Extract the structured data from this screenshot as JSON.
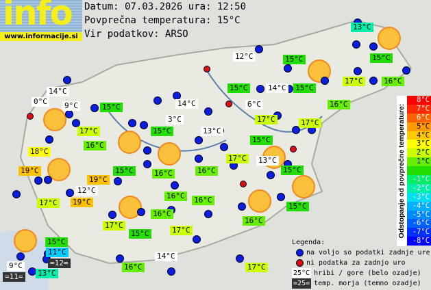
{
  "logo": {
    "text": "info",
    "url": "www.informacije.si"
  },
  "header": {
    "date_line": "Datum: 07.03.2026 ura: 12:50",
    "avg_line": "Povprečna temperatura: 15°C",
    "source_line": "Vir podatkov: ARSO"
  },
  "colors": {
    "station_ok": "#0a1ee0",
    "station_missing": "#d81010",
    "sun": "#fbc03a"
  },
  "labels": [
    {
      "t": "13°C",
      "c": "t"
    },
    {
      "t": "12°C",
      "c": "w"
    },
    {
      "t": "15°C",
      "c": "g"
    },
    {
      "t": "15°C",
      "c": "g"
    },
    {
      "t": "15°C",
      "c": "g"
    },
    {
      "t": "14°C",
      "c": "w"
    },
    {
      "t": "15°C",
      "c": "g"
    },
    {
      "t": "17°C",
      "c": "yg"
    },
    {
      "t": "16°C",
      "c": "lg"
    },
    {
      "t": "14°C",
      "c": "w"
    },
    {
      "t": "0°C",
      "c": "w"
    },
    {
      "t": "9°C",
      "c": "w"
    },
    {
      "t": "15°C",
      "c": "g"
    },
    {
      "t": "14°C",
      "c": "w"
    },
    {
      "t": "6°C",
      "c": "w"
    },
    {
      "t": "16°C",
      "c": "lg"
    },
    {
      "t": "3°C",
      "c": "w"
    },
    {
      "t": "17°C",
      "c": "yg"
    },
    {
      "t": "17°C",
      "c": "yg"
    },
    {
      "t": "17°C",
      "c": "yg"
    },
    {
      "t": "15°C",
      "c": "g"
    },
    {
      "t": "13°C",
      "c": "w"
    },
    {
      "t": "15°C",
      "c": "g"
    },
    {
      "t": "16°C",
      "c": "lg"
    },
    {
      "t": "18°C",
      "c": "y"
    },
    {
      "t": "17°C",
      "c": "yg"
    },
    {
      "t": "13°C",
      "c": "w"
    },
    {
      "t": "15°C",
      "c": "g"
    },
    {
      "t": "19°C",
      "c": "o"
    },
    {
      "t": "15°C",
      "c": "g"
    },
    {
      "t": "16°C",
      "c": "lg"
    },
    {
      "t": "16°C",
      "c": "lg"
    },
    {
      "t": "19°C",
      "c": "o"
    },
    {
      "t": "12°C",
      "c": "w"
    },
    {
      "t": "16°C",
      "c": "lg"
    },
    {
      "t": "16°C",
      "c": "lg"
    },
    {
      "t": "17°C",
      "c": "yg"
    },
    {
      "t": "19°C",
      "c": "o"
    },
    {
      "t": "16°C",
      "c": "lg"
    },
    {
      "t": "15°C",
      "c": "g"
    },
    {
      "t": "17°C",
      "c": "yg"
    },
    {
      "t": "15°C",
      "c": "g"
    },
    {
      "t": "17°C",
      "c": "yg"
    },
    {
      "t": "16°C",
      "c": "lg"
    },
    {
      "t": "15°C",
      "c": "g"
    },
    {
      "t": "11°C",
      "c": "c"
    },
    {
      "t": "14°C",
      "c": "w"
    },
    {
      "t": "9°C",
      "c": "w"
    },
    {
      "t": "=12=",
      "c": "d"
    },
    {
      "t": "16°C",
      "c": "lg"
    },
    {
      "t": "17°C",
      "c": "yg"
    },
    {
      "t": "=11=",
      "c": "d"
    },
    {
      "t": "13°C",
      "c": "t"
    }
  ],
  "scale": {
    "title": "Odstopanje od povprečne temperature:",
    "steps": [
      {
        "t": "8°C",
        "c": "#ff0000"
      },
      {
        "t": "7°C",
        "c": "#ff2a00"
      },
      {
        "t": "6°C",
        "c": "#ff6000"
      },
      {
        "t": "5°C",
        "c": "#ff9900"
      },
      {
        "t": "4°C",
        "c": "#ffc800"
      },
      {
        "t": "3°C",
        "c": "#ffff00"
      },
      {
        "t": "2°C",
        "c": "#ccff00"
      },
      {
        "t": "1°C",
        "c": "#66ee00"
      },
      {
        "t": "",
        "c": "#22dd00"
      },
      {
        "t": "-1°C",
        "c": "#00ee66"
      },
      {
        "t": "-2°C",
        "c": "#00eeaa"
      },
      {
        "t": "-3°C",
        "c": "#00ddee"
      },
      {
        "t": "-4°C",
        "c": "#00b0ff"
      },
      {
        "t": "-5°C",
        "c": "#0088ff"
      },
      {
        "t": "-6°C",
        "c": "#0060ff"
      },
      {
        "t": "-7°C",
        "c": "#0030ff"
      },
      {
        "t": "-8°C",
        "c": "#0000ff"
      }
    ]
  },
  "legend": {
    "title": "Legenda:",
    "ok": "na voljo so podatki zadnje ure",
    "missing": "ni podatka za zadnjo uro",
    "mountain_sample": "25°C",
    "mountain": "hribi / gore (belo ozadje)",
    "sea_sample": "=25=",
    "sea": "temp. morja (temno ozadje)"
  }
}
